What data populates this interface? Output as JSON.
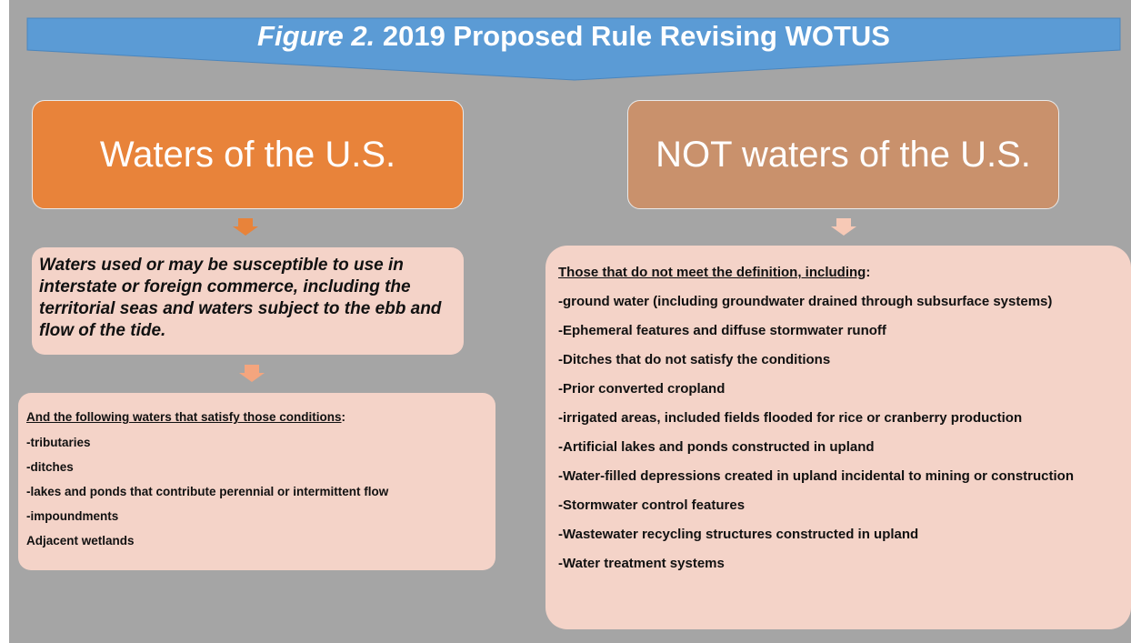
{
  "header": {
    "title_prefix": "Figure 2.",
    "title": "2019 Proposed Rule Revising WOTUS"
  },
  "left": {
    "heading": "Waters of the U.S.",
    "definition": "Waters used or may be susceptible to use in interstate or foreign commerce, including the territorial seas and waters subject to the ebb and flow of the tide.",
    "list_heading": "And the following waters that satisfy those conditions",
    "list_heading_suffix": ":",
    "items": [
      "-tributaries",
      "-ditches",
      "-lakes and ponds that contribute perennial or intermittent flow",
      "-impoundments",
      "Adjacent wetlands"
    ]
  },
  "right": {
    "heading": "NOT waters of the U.S.",
    "list_heading": "Those that do not meet the definition, including",
    "list_heading_suffix": ":",
    "items": [
      "-ground water (including groundwater drained through subsurface systems)",
      "-Ephemeral features and diffuse stormwater runoff",
      "-Ditches that do not satisfy the conditions",
      "-Prior converted cropland",
      "-irrigated areas, included fields flooded for rice or cranberry production",
      "-Artificial lakes and ponds constructed in upland",
      "-Water-filled depressions created in upland incidental to mining or construction",
      "-Stormwater control features",
      "-Wastewater recycling structures constructed in upland",
      "-Water treatment systems"
    ]
  }
}
